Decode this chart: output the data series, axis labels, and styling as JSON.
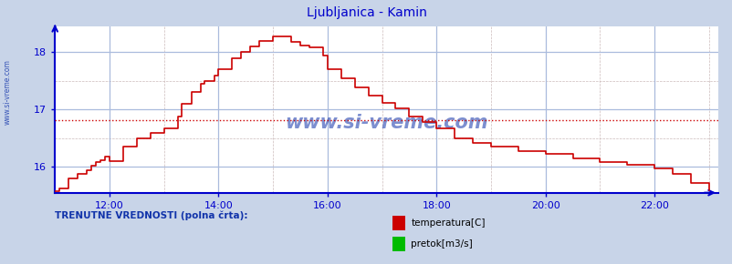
{
  "title": "Ljubljanica - Kamin",
  "title_color": "#0000cc",
  "bg_color": "#c8d4e8",
  "plot_bg_color": "#ffffff",
  "grid_color_major": "#aabbdd",
  "grid_color_minor": "#ccbbbb",
  "x_ticks": [
    12,
    14,
    16,
    18,
    20,
    22
  ],
  "y_ticks": [
    16,
    17,
    18
  ],
  "xlim": [
    11.0,
    23.17
  ],
  "ylim": [
    15.55,
    18.45
  ],
  "avg_line_y": 16.82,
  "avg_line_color": "#cc0000",
  "line_color": "#cc0000",
  "axis_color": "#0000cc",
  "watermark": "www.si-vreme.com",
  "watermark_color": "#1133aa",
  "left_label": "www.si-vreme.com",
  "left_label_color": "#1133aa",
  "legend_text1": "temperatura[C]",
  "legend_text2": "pretok[m3/s]",
  "legend_color1": "#cc0000",
  "legend_color2": "#00bb00",
  "bottom_label": "TRENUTNE VREDNOSTI (polna črta):",
  "temp_data_x": [
    11.0,
    11.08,
    11.25,
    11.42,
    11.58,
    11.67,
    11.75,
    11.83,
    11.92,
    12.0,
    12.25,
    12.5,
    12.75,
    13.0,
    13.25,
    13.33,
    13.5,
    13.67,
    13.75,
    13.92,
    14.0,
    14.25,
    14.42,
    14.58,
    14.75,
    15.0,
    15.17,
    15.33,
    15.5,
    15.67,
    15.92,
    16.0,
    16.25,
    16.5,
    16.75,
    17.0,
    17.25,
    17.5,
    17.75,
    18.0,
    18.33,
    18.67,
    19.0,
    19.5,
    20.0,
    20.5,
    21.0,
    21.5,
    22.0,
    22.33,
    22.67,
    23.0
  ],
  "temp_data_y": [
    15.58,
    15.62,
    15.8,
    15.88,
    15.95,
    16.02,
    16.08,
    16.12,
    16.18,
    16.1,
    16.35,
    16.5,
    16.6,
    16.68,
    16.88,
    17.1,
    17.3,
    17.45,
    17.5,
    17.6,
    17.7,
    17.9,
    18.0,
    18.1,
    18.2,
    18.28,
    18.28,
    18.18,
    18.12,
    18.08,
    17.95,
    17.7,
    17.55,
    17.38,
    17.25,
    17.12,
    17.02,
    16.88,
    16.78,
    16.68,
    16.5,
    16.42,
    16.35,
    16.28,
    16.22,
    16.15,
    16.08,
    16.03,
    15.98,
    15.88,
    15.72,
    15.6
  ]
}
